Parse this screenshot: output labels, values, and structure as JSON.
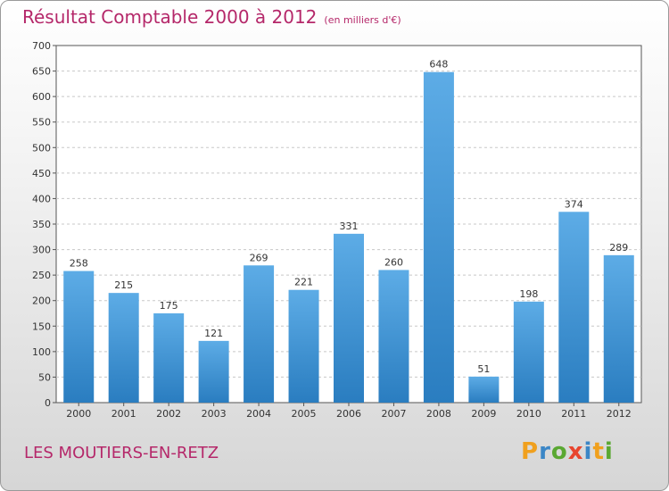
{
  "header": {
    "title": "Résultat Comptable 2000 à 2012",
    "subtitle": "(en milliers d'€)"
  },
  "footer": {
    "place": "LES MOUTIERS-EN-RETZ",
    "logo": "Proxiti"
  },
  "colors": {
    "title": "#b5286a",
    "bar_light": "#5dace6",
    "bar_dark": "#2a7dc0",
    "logo_letters": [
      "#f0a01e",
      "#3b86c6",
      "#5aa832",
      "#e8452e",
      "#3b86c6",
      "#f0a01e",
      "#5aa832"
    ]
  },
  "chart_data": {
    "type": "bar",
    "categories": [
      "2000",
      "2001",
      "2002",
      "2003",
      "2004",
      "2005",
      "2006",
      "2007",
      "2008",
      "2009",
      "2010",
      "2011",
      "2012"
    ],
    "values": [
      258,
      215,
      175,
      121,
      269,
      221,
      331,
      260,
      648,
      51,
      198,
      374,
      289
    ],
    "title": "Résultat Comptable 2000 à 2012",
    "ylim": [
      0,
      700
    ],
    "yticks": [
      0,
      50,
      100,
      150,
      200,
      250,
      300,
      350,
      400,
      450,
      500,
      550,
      600,
      650,
      700
    ],
    "grid": true
  }
}
